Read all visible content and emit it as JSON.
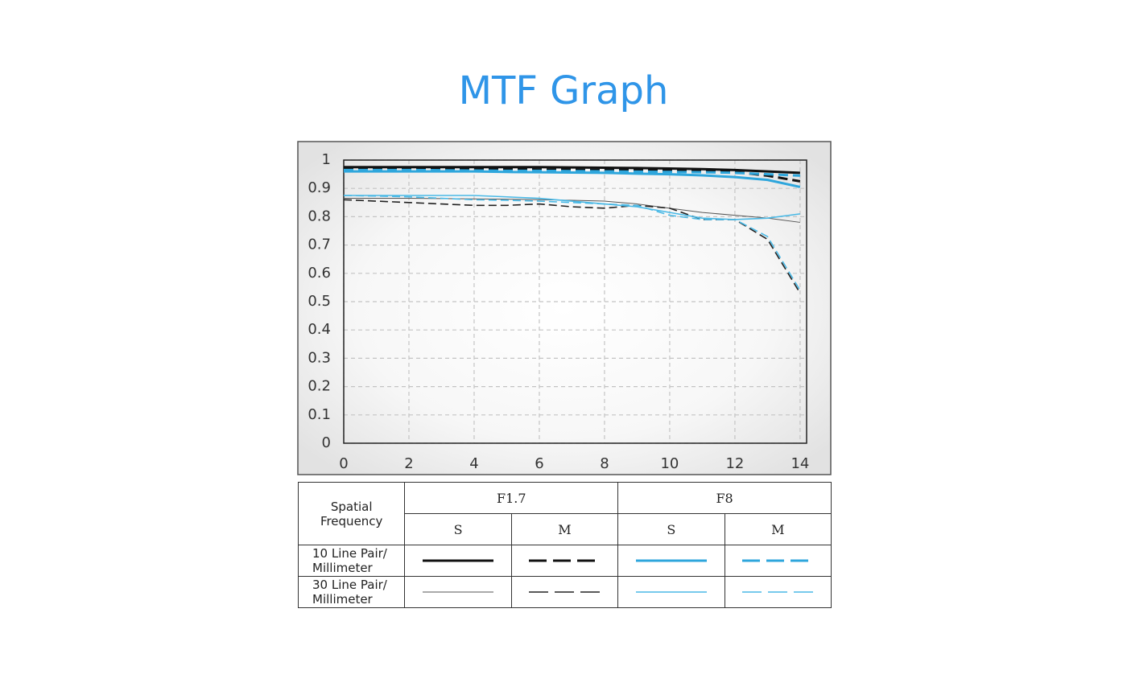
{
  "title": "MTF Graph",
  "chart_data": {
    "type": "line",
    "x": [
      0,
      1,
      2,
      3,
      4,
      5,
      6,
      7,
      8,
      9,
      10,
      11,
      12,
      13,
      14
    ],
    "xlim": [
      0,
      14.2
    ],
    "xticks": [
      0,
      2,
      4,
      6,
      8,
      10,
      12,
      14
    ],
    "ylim": [
      0,
      1
    ],
    "yticks": [
      0,
      0.1,
      0.2,
      0.3,
      0.4,
      0.5,
      0.6,
      0.7,
      0.8,
      0.9,
      1
    ],
    "grid": true,
    "series": [
      {
        "color": "#111111",
        "width": 3,
        "dash": "solid",
        "values": [
          0.975,
          0.975,
          0.975,
          0.975,
          0.975,
          0.975,
          0.975,
          0.974,
          0.973,
          0.972,
          0.97,
          0.968,
          0.965,
          0.96,
          0.955
        ]
      },
      {
        "color": "#111111",
        "width": 3,
        "dash": "dashed",
        "values": [
          0.97,
          0.97,
          0.97,
          0.97,
          0.97,
          0.968,
          0.967,
          0.966,
          0.965,
          0.965,
          0.964,
          0.962,
          0.958,
          0.945,
          0.925
        ]
      },
      {
        "color": "#2ea6dc",
        "width": 3,
        "dash": "solid",
        "values": [
          0.96,
          0.96,
          0.96,
          0.96,
          0.96,
          0.958,
          0.957,
          0.956,
          0.955,
          0.952,
          0.95,
          0.946,
          0.94,
          0.93,
          0.905
        ]
      },
      {
        "color": "#2ea6dc",
        "width": 3,
        "dash": "dashed",
        "values": [
          0.965,
          0.965,
          0.965,
          0.964,
          0.963,
          0.962,
          0.962,
          0.961,
          0.96,
          0.959,
          0.958,
          0.957,
          0.955,
          0.95,
          0.945
        ]
      },
      {
        "color": "#555555",
        "width": 1,
        "dash": "solid",
        "values": [
          0.865,
          0.865,
          0.865,
          0.864,
          0.863,
          0.862,
          0.86,
          0.858,
          0.855,
          0.845,
          0.83,
          0.815,
          0.805,
          0.795,
          0.78
        ]
      },
      {
        "color": "#222222",
        "width": 1.6,
        "dash": "dashed",
        "values": [
          0.86,
          0.855,
          0.85,
          0.845,
          0.84,
          0.84,
          0.845,
          0.835,
          0.83,
          0.84,
          0.83,
          0.79,
          0.79,
          0.72,
          0.53
        ]
      },
      {
        "color": "#4ab9e6",
        "width": 1.6,
        "dash": "solid",
        "values": [
          0.875,
          0.875,
          0.875,
          0.875,
          0.875,
          0.87,
          0.865,
          0.855,
          0.845,
          0.835,
          0.815,
          0.795,
          0.79,
          0.795,
          0.81
        ]
      },
      {
        "color": "#4ab9e6",
        "width": 1.6,
        "dash": "dashed",
        "values": [
          0.875,
          0.873,
          0.87,
          0.865,
          0.86,
          0.858,
          0.855,
          0.85,
          0.845,
          0.84,
          0.805,
          0.79,
          0.79,
          0.73,
          0.54
        ]
      }
    ]
  },
  "table": {
    "corner": "Spatial\nFrequency",
    "groups": [
      "F1.7",
      "F8"
    ],
    "subheaders": [
      "S",
      "M",
      "S",
      "M"
    ],
    "rows": [
      "10 Line Pair/\nMillimeter",
      "30 Line Pair/\nMillimeter"
    ]
  }
}
